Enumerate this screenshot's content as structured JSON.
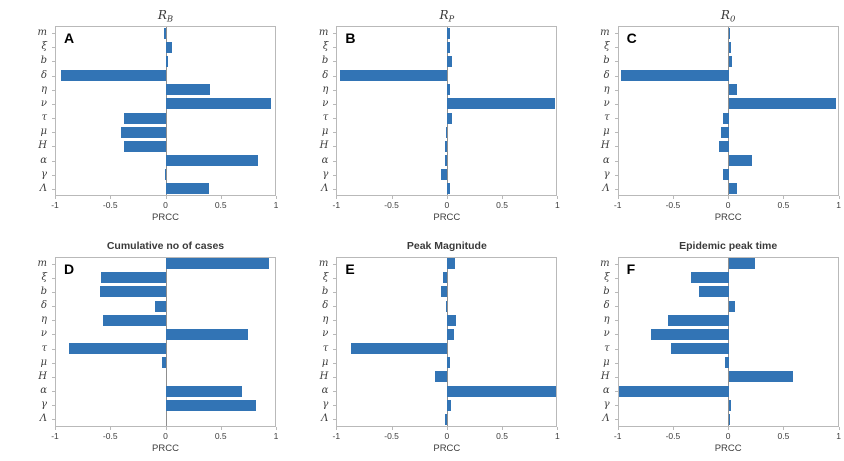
{
  "figure": {
    "background": "#ffffff",
    "bar_color": "#3274b5",
    "axis_color": "#b9b9b9",
    "baseline_color": "#8f8f8f",
    "text_color": "#3d3d3d",
    "xlabel": "PRCC",
    "panel_labels": [
      "A",
      "B",
      "C",
      "D",
      "E",
      "F"
    ]
  },
  "chart_data": [
    {
      "type": "bar",
      "orientation": "horizontal",
      "panel_label": "A",
      "title": "R",
      "title_sub": "B",
      "categories": [
        "m",
        "ξ",
        "b",
        "δ",
        "η",
        "ν",
        "τ",
        "μ",
        "H",
        "α",
        "γ",
        "Λ"
      ],
      "values": [
        -0.02,
        0.05,
        0.02,
        -0.95,
        0.4,
        0.95,
        -0.38,
        -0.41,
        -0.38,
        0.83,
        -0.01,
        0.39
      ],
      "xlabel": "PRCC",
      "xlim": [
        -1,
        1
      ],
      "xticks": [
        -1,
        -0.5,
        0,
        0.5,
        1
      ],
      "grid": false
    },
    {
      "type": "bar",
      "orientation": "horizontal",
      "panel_label": "B",
      "title": "R",
      "title_sub": "P",
      "categories": [
        "m",
        "ξ",
        "b",
        "δ",
        "η",
        "ν",
        "τ",
        "μ",
        "H",
        "α",
        "γ",
        "Λ"
      ],
      "values": [
        0.02,
        0.02,
        0.04,
        -0.97,
        0.02,
        0.97,
        0.04,
        -0.005,
        -0.02,
        -0.02,
        -0.06,
        0.02
      ],
      "xlabel": "PRCC",
      "xlim": [
        -1,
        1
      ],
      "xticks": [
        -1,
        -0.5,
        0,
        0.5,
        1
      ],
      "grid": false
    },
    {
      "type": "bar",
      "orientation": "horizontal",
      "panel_label": "C",
      "title": "R",
      "title_sub": "0",
      "categories": [
        "m",
        "ξ",
        "b",
        "δ",
        "η",
        "ν",
        "τ",
        "μ",
        "H",
        "α",
        "γ",
        "Λ"
      ],
      "values": [
        0.01,
        0.02,
        0.03,
        -0.97,
        0.08,
        0.97,
        -0.05,
        -0.07,
        -0.09,
        0.21,
        -0.05,
        0.08
      ],
      "xlabel": "PRCC",
      "xlim": [
        -1,
        1
      ],
      "xticks": [
        -1,
        -0.5,
        0,
        0.5,
        1
      ],
      "grid": false
    },
    {
      "type": "bar",
      "orientation": "horizontal",
      "panel_label": "D",
      "title": "Cumulative no of cases",
      "title_sub": "",
      "categories": [
        "m",
        "ξ",
        "b",
        "δ",
        "η",
        "ν",
        "τ",
        "μ",
        "H",
        "α",
        "γ",
        "Λ"
      ],
      "values": [
        0.93,
        -0.59,
        -0.6,
        -0.1,
        -0.57,
        0.74,
        -0.88,
        -0.04,
        0,
        0.69,
        0.81,
        0
      ],
      "xlabel": "PRCC",
      "xlim": [
        -1,
        1
      ],
      "xticks": [
        -1,
        -0.5,
        0,
        0.5,
        1
      ],
      "grid": false
    },
    {
      "type": "bar",
      "orientation": "horizontal",
      "panel_label": "E",
      "title": "Peak Magnitude",
      "title_sub": "",
      "categories": [
        "m",
        "ξ",
        "b",
        "δ",
        "η",
        "ν",
        "τ",
        "μ",
        "H",
        "α",
        "γ",
        "Λ"
      ],
      "values": [
        0.07,
        -0.04,
        -0.06,
        -0.01,
        0.08,
        0.06,
        -0.87,
        0.02,
        -0.11,
        0.98,
        0.03,
        -0.02
      ],
      "xlabel": "PRCC",
      "xlim": [
        -1,
        1
      ],
      "xticks": [
        -1,
        -0.5,
        0,
        0.5,
        1
      ],
      "grid": false
    },
    {
      "type": "bar",
      "orientation": "horizontal",
      "panel_label": "F",
      "title": "Epidemic peak time",
      "title_sub": "",
      "categories": [
        "m",
        "ξ",
        "b",
        "δ",
        "η",
        "ν",
        "τ",
        "μ",
        "H",
        "α",
        "γ",
        "Λ"
      ],
      "values": [
        0.24,
        -0.34,
        -0.27,
        0.06,
        -0.55,
        -0.7,
        -0.52,
        -0.03,
        0.58,
        -0.99,
        0.02,
        0.01
      ],
      "xlabel": "PRCC",
      "xlim": [
        -1,
        1
      ],
      "xticks": [
        -1,
        -0.5,
        0,
        0.5,
        1
      ],
      "grid": false
    }
  ]
}
